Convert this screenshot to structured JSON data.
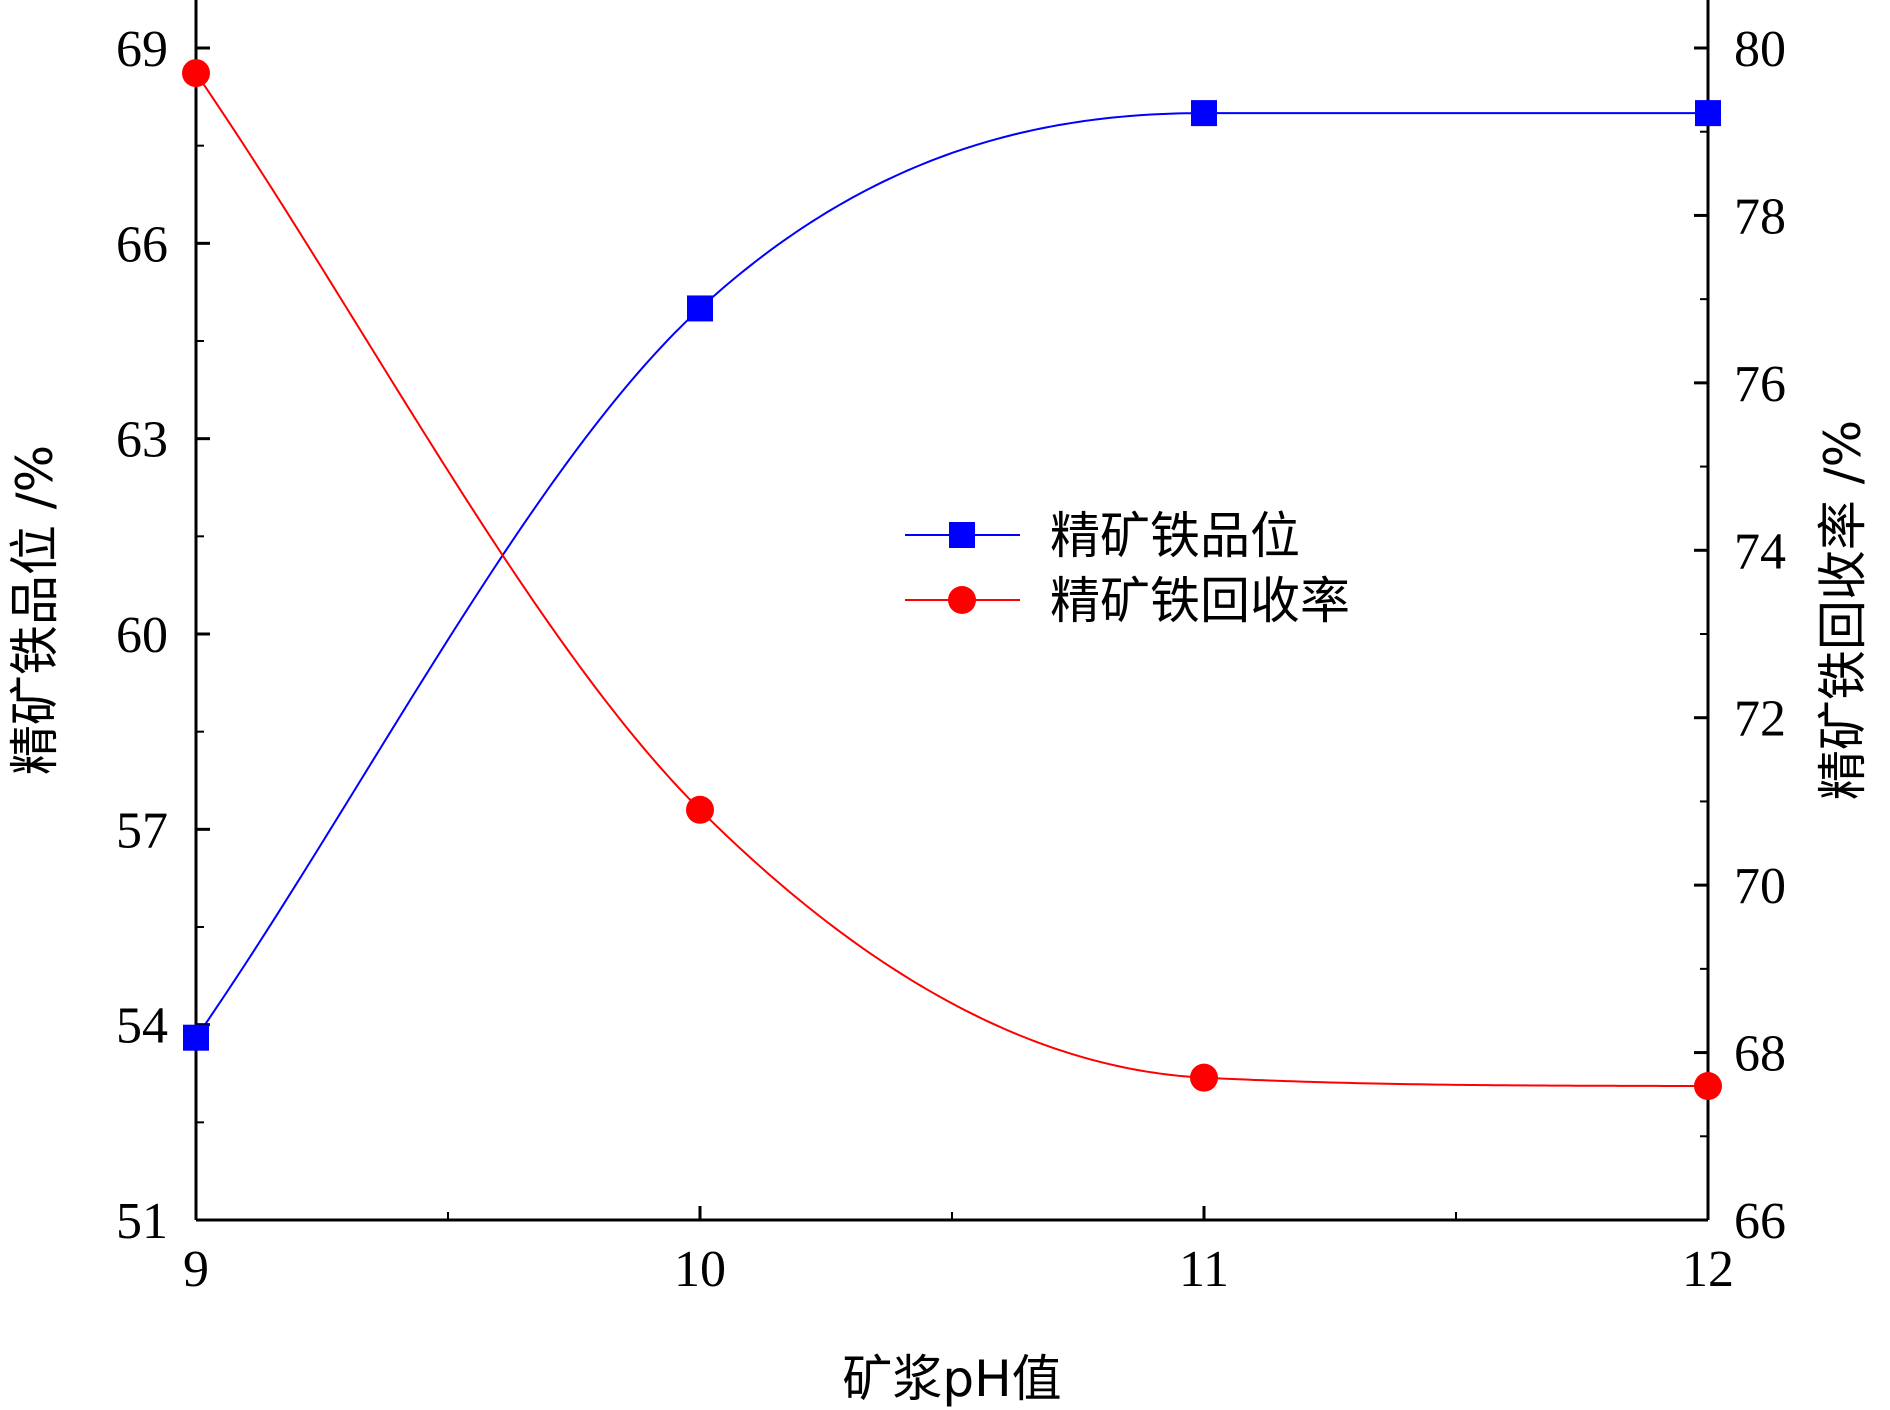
{
  "chart_data": {
    "type": "line",
    "title": "",
    "xlabel": "矿浆pH值",
    "ylabel_left": "精矿铁品位 /%",
    "ylabel_right": "精矿铁回收率 /%",
    "xlim": [
      9,
      12
    ],
    "ylim_left": [
      51,
      69
    ],
    "ylim_right": [
      66,
      80
    ],
    "x_ticks": [
      "9",
      "10",
      "11",
      "12"
    ],
    "y_left_ticks": [
      "51",
      "54",
      "57",
      "60",
      "63",
      "66",
      "69"
    ],
    "y_right_ticks": [
      "66",
      "68",
      "70",
      "72",
      "74",
      "76",
      "78",
      "80"
    ],
    "legend_position": "center-right",
    "series": [
      {
        "name": "精矿铁品位",
        "axis": "left",
        "marker": "square",
        "color": "#0000ff",
        "x": [
          9,
          10,
          11,
          12
        ],
        "values": [
          53.8,
          65.0,
          68.0,
          68.0
        ]
      },
      {
        "name": "精矿铁回收率",
        "axis": "right",
        "marker": "circle",
        "color": "#ff0000",
        "x": [
          9,
          10,
          11,
          12
        ],
        "values": [
          79.7,
          70.9,
          67.7,
          67.6
        ]
      }
    ]
  }
}
